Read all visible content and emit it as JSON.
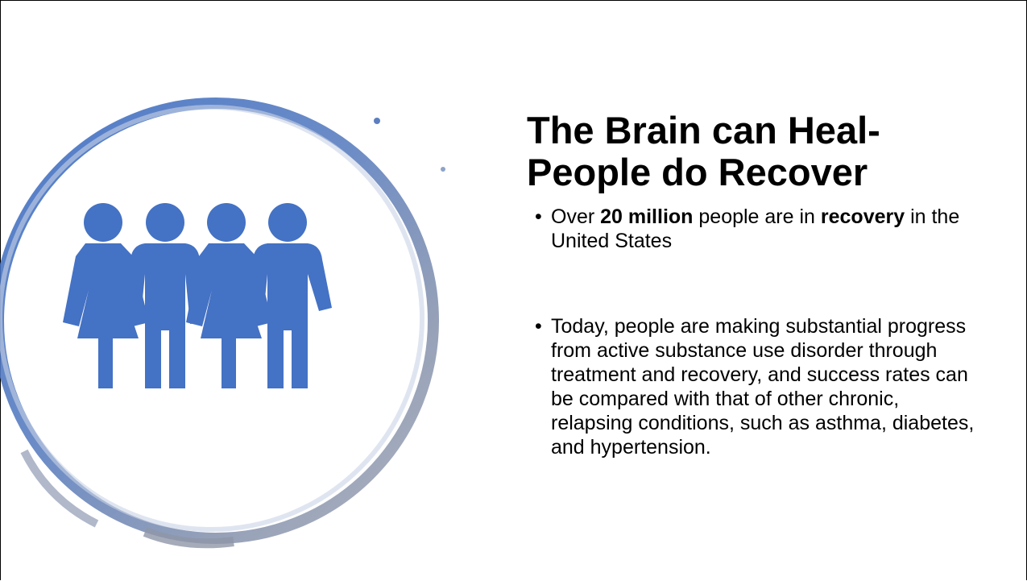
{
  "slide": {
    "title_lines": [
      "The Brain can Heal-",
      "People do Recover"
    ],
    "bullets": [
      {
        "runs": [
          {
            "text": "Over "
          },
          {
            "text": "20 million",
            "bold": true
          },
          {
            "text": " people are in "
          },
          {
            "text": "recovery",
            "bold": true
          },
          {
            "text": " in the United States"
          }
        ]
      },
      {
        "runs": [
          {
            "text": "Today, people are making substantial progress from active substance use disorder through treatment and recovery, and success rates can be compared with that of other chronic, relapsing conditions, such as asthma, diabetes, and hypertension."
          }
        ]
      }
    ]
  }
}
